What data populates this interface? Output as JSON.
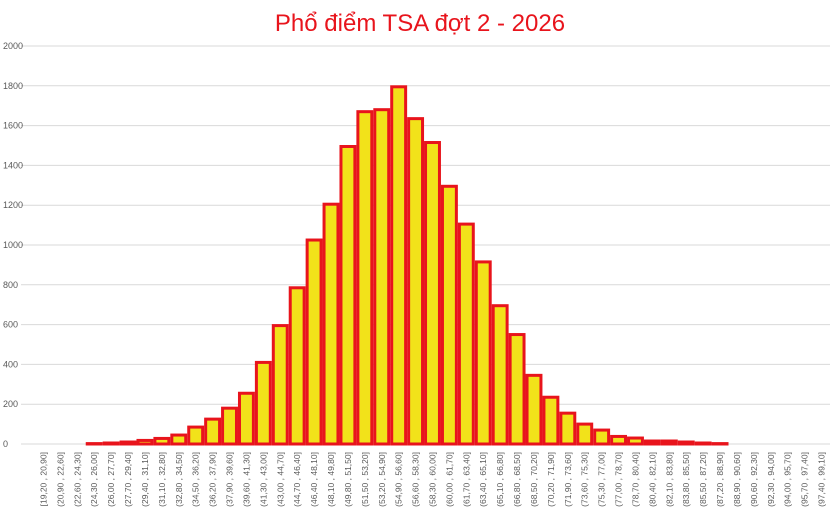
{
  "chart_data": {
    "type": "bar",
    "title": "Phổ điểm TSA đợt 2 - 2026",
    "xlabel": "",
    "ylabel": "",
    "ylim": [
      0,
      2000
    ],
    "yticks": [
      0,
      200,
      400,
      600,
      800,
      1000,
      1200,
      1400,
      1600,
      1800,
      2000
    ],
    "grid": true,
    "legend": "none",
    "colors": {
      "bar_fill": "#f2e21a",
      "bar_stroke": "#e8141c",
      "title": "#e8141c",
      "grid": "#d9d9d9"
    },
    "categories": [
      "[19,20 , 20,90]",
      "(20,90 , 22,60]",
      "(22,60 , 24,30]",
      "(24,30 , 26,00]",
      "(26,00 , 27,70]",
      "(27,70 , 29,40]",
      "(29,40 , 31,10]",
      "(31,10 , 32,80]",
      "(32,80 , 34,50]",
      "(34,50 , 36,20]",
      "(36,20 , 37,90]",
      "(37,90 , 39,60]",
      "(39,60 , 41,30]",
      "(41,30 , 43,00]",
      "(43,00 , 44,70]",
      "(44,70 , 46,40]",
      "(46,40 , 48,10]",
      "(48,10 , 49,80]",
      "(49,80 , 51,50]",
      "(51,50 , 53,20]",
      "(53,20 , 54,90]",
      "(54,90 , 56,60]",
      "(56,60 , 58,30]",
      "(58,30 , 60,00]",
      "(60,00 , 61,70]",
      "(61,70 , 63,40]",
      "(63,40 , 65,10]",
      "(65,10 , 66,80]",
      "(66,80 , 68,50]",
      "(68,50 , 70,20]",
      "(70,20 , 71,90]",
      "(71,90 , 73,60]",
      "(73,60 , 75,30]",
      "(75,30 , 77,00]",
      "(77,00 , 78,70]",
      "(78,70 , 80,40]",
      "(80,40 , 82,10]",
      "(82,10 , 83,80]",
      "(83,80 , 85,50]",
      "(85,50 , 87,20]",
      "(87,20 , 88,90]",
      "(88,90 , 90,60]",
      "(90,60 , 92,30]",
      "(92,30 , 94,00]",
      "(94,00 , 95,70]",
      "(95,70 , 97,40]",
      "(97,40 , 99,10]"
    ],
    "values": [
      0,
      0,
      0,
      2,
      5,
      10,
      18,
      28,
      45,
      85,
      125,
      180,
      255,
      410,
      595,
      785,
      1025,
      1205,
      1495,
      1670,
      1680,
      1795,
      1635,
      1515,
      1295,
      1105,
      915,
      695,
      550,
      345,
      235,
      155,
      100,
      70,
      38,
      30,
      15,
      15,
      10,
      5,
      2,
      0,
      0,
      0,
      0,
      0,
      0
    ]
  }
}
